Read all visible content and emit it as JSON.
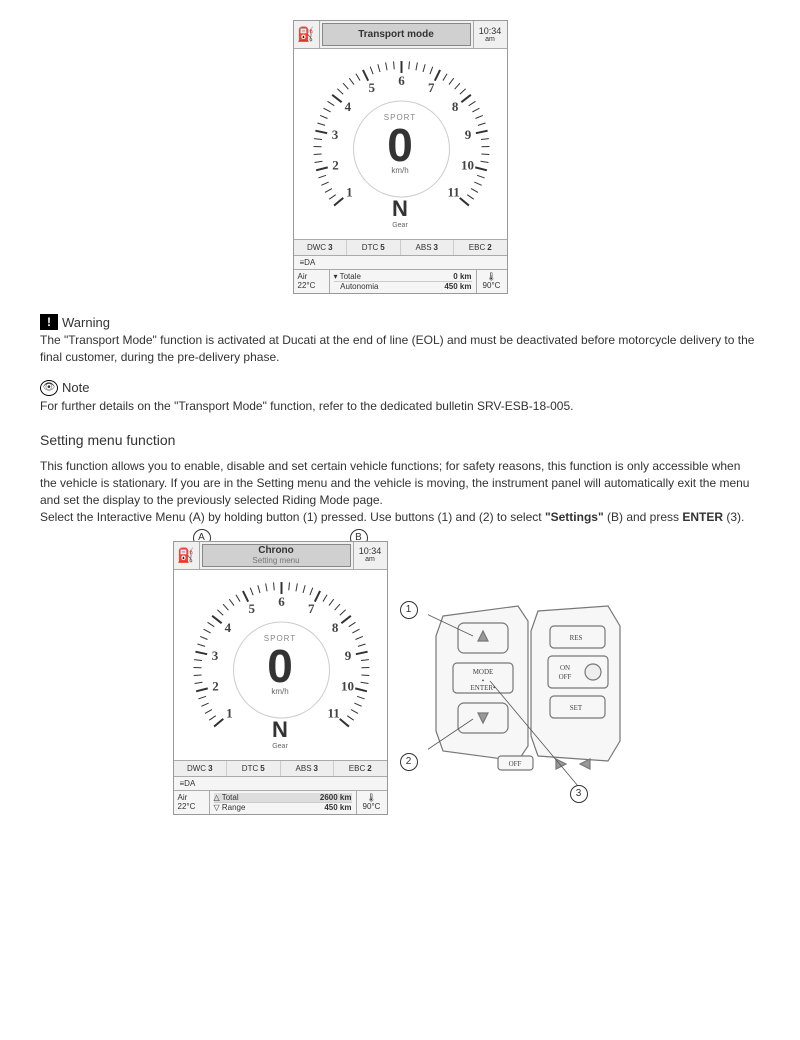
{
  "dashboard1": {
    "header_title": "Transport mode",
    "clock_time": "10:34",
    "clock_ampm": "am",
    "ride_mode": "SPORT",
    "speed": "0",
    "speed_unit": "km/h",
    "gear": "N",
    "gear_label": "Gear",
    "tach_numbers": [
      "1",
      "2",
      "3",
      "4",
      "5",
      "6",
      "7",
      "8",
      "9",
      "10",
      "11"
    ],
    "tach_number_fontsize": 13,
    "stats": {
      "dwc_label": "DWC",
      "dwc_val": "3",
      "dtc_label": "DTC",
      "dtc_val": "5",
      "abs_label": "ABS",
      "abs_val": "3",
      "ebc_label": "EBC",
      "ebc_val": "2"
    },
    "lights_label": "A",
    "air_label": "Air",
    "air_val": "22",
    "air_unit": "°C",
    "trip1_label": "Totale",
    "trip1_val": "0 km",
    "trip2_label": "Autonomia",
    "trip2_val": "450 km",
    "temp_val": "90",
    "temp_unit": "°C"
  },
  "warning": {
    "label": "Warning",
    "text": "The \"Transport Mode\" function is activated at Ducati at the end of line (EOL) and must be deactivated before motorcycle delivery to the final customer, during the pre-delivery phase."
  },
  "note": {
    "label": "Note",
    "text": "For further details on the \"Transport Mode\" function, refer to the dedicated bulletin SRV-ESB-18-005."
  },
  "setting": {
    "heading": "Setting menu function",
    "para1": "This function allows you to enable, disable and set certain vehicle functions; for safety reasons, this function is only accessible when the vehicle is stationary. If you are in the Setting menu and the vehicle is moving, the instrument panel will automatically exit the menu and set the display to the previously selected Riding Mode page.",
    "para2a": "Select the Interactive Menu (A) by holding button (1) pressed. Use buttons (1) and (2) to select ",
    "para2b": "\"Settings\"",
    "para2c": " (B) and press ",
    "para2d": "ENTER",
    "para2e": " (3)."
  },
  "dashboard2": {
    "header_title": "Chrono",
    "header_sub": "Setting menu",
    "clock_time": "10:34",
    "clock_ampm": "am",
    "ride_mode": "SPORT",
    "speed": "0",
    "speed_unit": "km/h",
    "gear": "N",
    "gear_label": "Gear",
    "stats": {
      "dwc_label": "DWC",
      "dwc_val": "3",
      "dtc_label": "DTC",
      "dtc_val": "5",
      "abs_label": "ABS",
      "abs_val": "3",
      "ebc_label": "EBC",
      "ebc_val": "2"
    },
    "lights_label": "A",
    "air_label": "Air",
    "air_val": "22",
    "air_unit": "°C",
    "trip1_label": "Total",
    "trip1_val": "2600 km",
    "trip2_label": "Range",
    "trip2_val": "450 km",
    "temp_val": "90",
    "temp_unit": "°C",
    "callout_a": "A",
    "callout_b": "B"
  },
  "switchgear": {
    "btn_mode": "MODE",
    "btn_enter": "ENTER",
    "btn_res": "RES",
    "btn_on": "ON",
    "btn_off": "OFF",
    "btn_set": "SET",
    "btn_off2": "OFF",
    "callout_1": "1",
    "callout_2": "2",
    "callout_3": "3"
  },
  "colors": {
    "text": "#333333",
    "border": "#999999",
    "light_bg": "#f5f5f5",
    "header_bg": "#d0d0d0",
    "switch_stroke": "#777777"
  }
}
